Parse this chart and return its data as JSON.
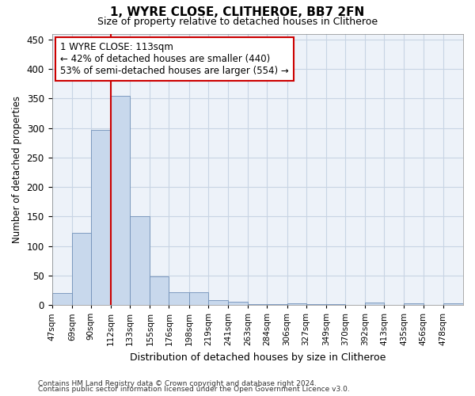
{
  "title1": "1, WYRE CLOSE, CLITHEROE, BB7 2FN",
  "title2": "Size of property relative to detached houses in Clitheroe",
  "xlabel": "Distribution of detached houses by size in Clitheroe",
  "ylabel": "Number of detached properties",
  "bin_labels": [
    "47sqm",
    "69sqm",
    "90sqm",
    "112sqm",
    "133sqm",
    "155sqm",
    "176sqm",
    "198sqm",
    "219sqm",
    "241sqm",
    "263sqm",
    "284sqm",
    "306sqm",
    "327sqm",
    "349sqm",
    "370sqm",
    "392sqm",
    "413sqm",
    "435sqm",
    "456sqm",
    "478sqm"
  ],
  "bin_edges": [
    47,
    69,
    90,
    112,
    133,
    155,
    176,
    198,
    219,
    241,
    263,
    284,
    306,
    327,
    349,
    370,
    392,
    413,
    435,
    456,
    478
  ],
  "bar_heights": [
    20,
    122,
    297,
    355,
    150,
    48,
    21,
    21,
    8,
    5,
    2,
    2,
    3,
    2,
    1,
    0,
    4,
    0,
    3,
    0,
    3
  ],
  "bar_color": "#c8d8ec",
  "bar_edge_color": "#7090b8",
  "grid_color": "#c8d4e4",
  "vline_color": "#cc0000",
  "annotation_text": "1 WYRE CLOSE: 113sqm\n← 42% of detached houses are smaller (440)\n53% of semi-detached houses are larger (554) →",
  "annotation_box_color": "#ffffff",
  "annotation_box_edge": "#cc0000",
  "ylim": [
    0,
    460
  ],
  "yticks": [
    0,
    50,
    100,
    150,
    200,
    250,
    300,
    350,
    400,
    450
  ],
  "footer1": "Contains HM Land Registry data © Crown copyright and database right 2024.",
  "footer2": "Contains public sector information licensed under the Open Government Licence v3.0.",
  "fig_facecolor": "#ffffff",
  "ax_facecolor": "#edf2f9"
}
